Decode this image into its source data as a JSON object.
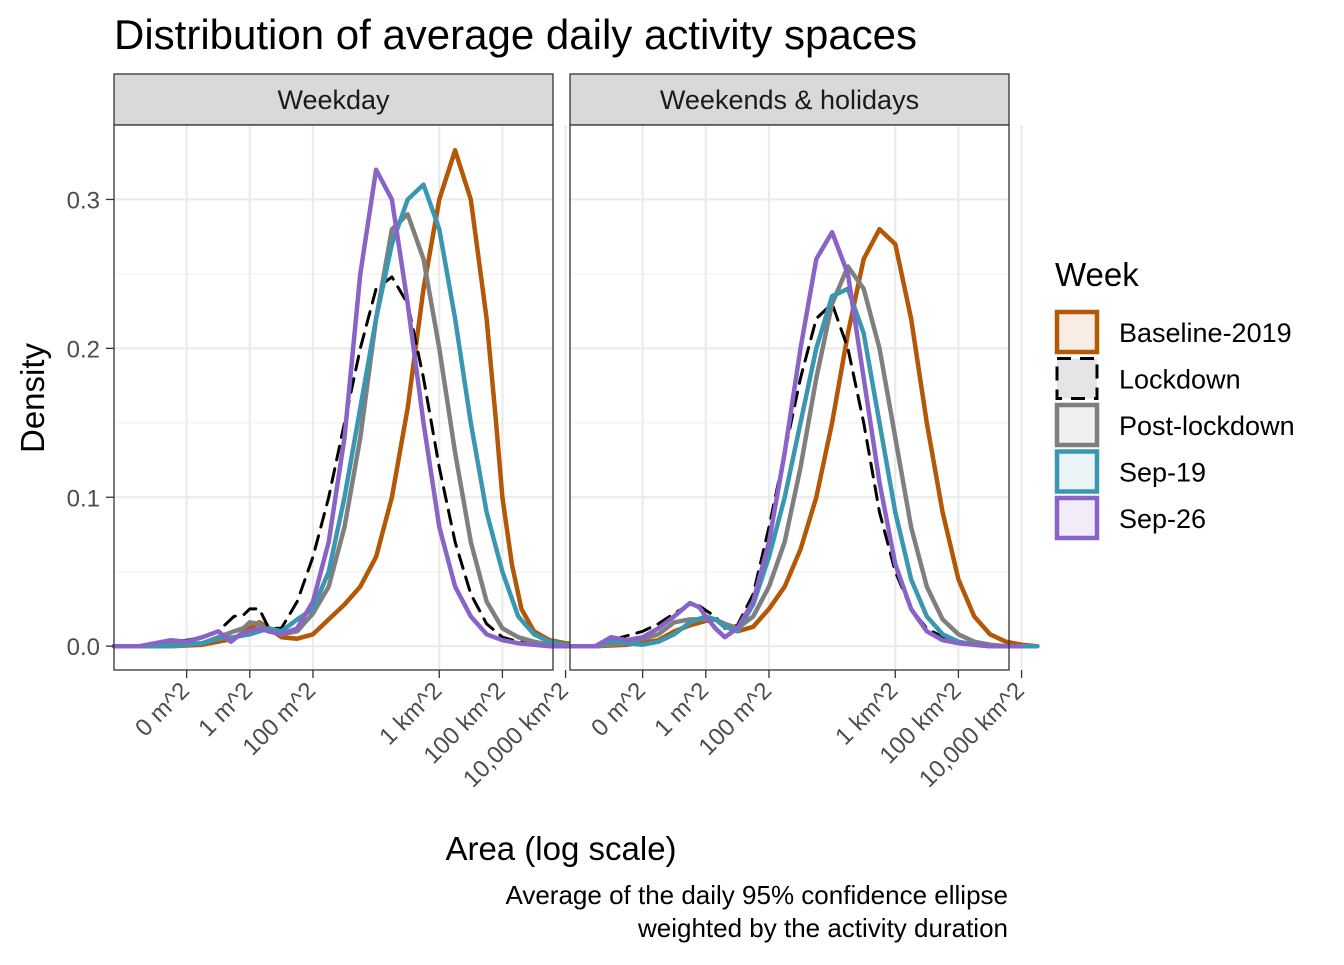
{
  "chart_data": {
    "type": "area",
    "title": "Distribution of average daily activity spaces",
    "xlabel": "Area (log scale)",
    "ylabel": "Density",
    "caption_lines": [
      "Average of the daily 95% confidence ellipse",
      "weighted by the activity duration"
    ],
    "x_scale": "log10",
    "xlim_m2": [
      5e-05,
      4000000000
    ],
    "ylim": [
      -0.016,
      0.35
    ],
    "grid": true,
    "x_ticks": [
      {
        "value_m2": 0.01,
        "label": "0 m^2"
      },
      {
        "value_m2": 1,
        "label": "1 m^2"
      },
      {
        "value_m2": 100,
        "label": "100 m^2"
      },
      {
        "value_m2": 1000000,
        "label": "1 km^2"
      },
      {
        "value_m2": 100000000,
        "label": "100 km^2"
      },
      {
        "value_m2": 10000000000,
        "label": "10,000 km^2"
      }
    ],
    "y_ticks": [
      0.0,
      0.1,
      0.2,
      0.3
    ],
    "y_tick_labels": [
      "0.0",
      "0.1",
      "0.2",
      "0.3"
    ],
    "legend": {
      "title": "Week",
      "position": "right"
    },
    "series_styles": [
      {
        "name": "Baseline-2019",
        "color": "#B35806",
        "fill": "#F7EDE4",
        "dash": false
      },
      {
        "name": "Lockdown",
        "color": "#000000",
        "fill": "#E5E5E5",
        "dash": true
      },
      {
        "name": "Post-lockdown",
        "color": "#7F7F7F",
        "fill": "#F0F0F0",
        "dash": false
      },
      {
        "name": "Sep-19",
        "color": "#3A97B2",
        "fill": "#EAF4F7",
        "dash": false
      },
      {
        "name": "Sep-26",
        "color": "#8A63C6",
        "fill": "#F1EDF8",
        "dash": false
      }
    ],
    "panels": [
      {
        "name": "Weekday",
        "series": [
          {
            "name": "Baseline-2019",
            "x_log10": [
              -4.3,
              -3.5,
              -2.5,
              -1.5,
              -1,
              -0.5,
              0,
              0.3,
              0.6,
              1,
              1.5,
              2,
              2.5,
              3,
              3.5,
              4,
              4.5,
              5,
              5.5,
              6,
              6.5,
              7,
              7.5,
              7.8,
              8,
              8.3,
              8.6,
              9,
              9.5,
              10,
              10.5
            ],
            "density": [
              0,
              0,
              0,
              0.001,
              0.003,
              0.005,
              0.012,
              0.016,
              0.012,
              0.006,
              0.005,
              0.008,
              0.018,
              0.028,
              0.04,
              0.06,
              0.1,
              0.16,
              0.24,
              0.3,
              0.333,
              0.3,
              0.22,
              0.15,
              0.1,
              0.055,
              0.025,
              0.01,
              0.004,
              0.002,
              0.001
            ]
          },
          {
            "name": "Lockdown",
            "x_log10": [
              -4.3,
              -3.5,
              -2.5,
              -2,
              -1.5,
              -1,
              -0.5,
              -0.2,
              0,
              0.3,
              0.6,
              1,
              1.5,
              2,
              2.5,
              3,
              3.5,
              4,
              4.5,
              5,
              5.5,
              6,
              6.5,
              7,
              7.5,
              8,
              8.5,
              9,
              9.5,
              10
            ],
            "density": [
              0,
              0,
              0.003,
              0.004,
              0.006,
              0.01,
              0.02,
              0.021,
              0.025,
              0.025,
              0.012,
              0.012,
              0.03,
              0.06,
              0.1,
              0.15,
              0.2,
              0.24,
              0.248,
              0.23,
              0.18,
              0.12,
              0.07,
              0.035,
              0.015,
              0.006,
              0.003,
              0.002,
              0.001,
              0.0
            ]
          },
          {
            "name": "Post-lockdown",
            "x_log10": [
              -4.3,
              -3.5,
              -2.5,
              -1.5,
              -1,
              -0.5,
              -0.2,
              0,
              0.3,
              0.6,
              1,
              1.5,
              2,
              2.5,
              3,
              3.5,
              4,
              4.5,
              5,
              5.5,
              6,
              6.5,
              7,
              7.5,
              8,
              8.5,
              9,
              9.5,
              10,
              10.5
            ],
            "density": [
              0,
              0,
              0.001,
              0.002,
              0.006,
              0.01,
              0.012,
              0.016,
              0.015,
              0.01,
              0.008,
              0.01,
              0.022,
              0.04,
              0.08,
              0.14,
              0.22,
              0.28,
              0.29,
              0.26,
              0.2,
              0.13,
              0.07,
              0.03,
              0.012,
              0.006,
              0.003,
              0.001,
              0,
              0
            ]
          },
          {
            "name": "Sep-19",
            "x_log10": [
              -4.3,
              -3.5,
              -2.5,
              -1.5,
              -1,
              -0.5,
              0,
              0.3,
              0.6,
              1,
              1.5,
              2,
              2.5,
              3,
              3.5,
              4,
              4.5,
              5,
              5.5,
              6,
              6.5,
              7,
              7.5,
              8,
              8.5,
              9,
              9.5,
              10,
              10.5
            ],
            "density": [
              0,
              0,
              0,
              0.002,
              0.005,
              0.006,
              0.008,
              0.01,
              0.012,
              0.01,
              0.018,
              0.025,
              0.05,
              0.1,
              0.16,
              0.22,
              0.27,
              0.3,
              0.31,
              0.28,
              0.22,
              0.15,
              0.09,
              0.05,
              0.02,
              0.008,
              0.003,
              0.001,
              0
            ]
          },
          {
            "name": "Sep-26",
            "x_log10": [
              -4.3,
              -3.5,
              -2.5,
              -2,
              -1.5,
              -1,
              -0.6,
              -0.3,
              0,
              0.3,
              0.6,
              1,
              1.5,
              2,
              2.5,
              3,
              3.5,
              4,
              4.5,
              5,
              5.5,
              6,
              6.5,
              7,
              7.5,
              8,
              8.5,
              9,
              9.5,
              10
            ],
            "density": [
              0,
              0,
              0.004,
              0.003,
              0.006,
              0.01,
              0.003,
              0.008,
              0.01,
              0.012,
              0.01,
              0.008,
              0.012,
              0.03,
              0.07,
              0.14,
              0.25,
              0.32,
              0.3,
              0.23,
              0.15,
              0.08,
              0.04,
              0.02,
              0.008,
              0.004,
              0.002,
              0.001,
              0,
              0
            ]
          }
        ]
      },
      {
        "name": "Weekends & holidays",
        "series": [
          {
            "name": "Baseline-2019",
            "x_log10": [
              -4.3,
              -3.5,
              -2.5,
              -1.5,
              -1,
              -0.5,
              0,
              0.3,
              0.6,
              1,
              1.5,
              2,
              2.5,
              3,
              3.5,
              4,
              4.5,
              5,
              5.5,
              6,
              6.5,
              7,
              7.5,
              8,
              8.5,
              9,
              9.5,
              10,
              10.5
            ],
            "density": [
              0,
              0,
              0.001,
              0.004,
              0.01,
              0.014,
              0.017,
              0.018,
              0.014,
              0.01,
              0.013,
              0.025,
              0.04,
              0.065,
              0.1,
              0.15,
              0.21,
              0.26,
              0.28,
              0.27,
              0.22,
              0.15,
              0.09,
              0.045,
              0.02,
              0.008,
              0.003,
              0.001,
              0
            ]
          },
          {
            "name": "Lockdown",
            "x_log10": [
              -4.3,
              -3.5,
              -3,
              -2.5,
              -2,
              -1.5,
              -1,
              -0.5,
              -0.2,
              0,
              0.3,
              0.6,
              1,
              1.5,
              2,
              2.5,
              3,
              3.5,
              4,
              4.5,
              5,
              5.5,
              6,
              6.5,
              7,
              7.5,
              8,
              8.5,
              9,
              9.5,
              10
            ],
            "density": [
              0,
              0,
              0.004,
              0.007,
              0.01,
              0.015,
              0.022,
              0.028,
              0.027,
              0.024,
              0.02,
              0.012,
              0.014,
              0.035,
              0.08,
              0.13,
              0.18,
              0.22,
              0.23,
              0.2,
              0.15,
              0.09,
              0.05,
              0.025,
              0.012,
              0.006,
              0.003,
              0.001,
              0,
              0,
              0
            ]
          },
          {
            "name": "Post-lockdown",
            "x_log10": [
              -4.3,
              -3.5,
              -2.5,
              -1.5,
              -1,
              -0.5,
              0,
              0.3,
              0.6,
              1,
              1.5,
              2,
              2.5,
              3,
              3.5,
              4,
              4.5,
              5,
              5.5,
              6,
              6.5,
              7,
              7.5,
              8,
              8.5,
              9,
              9.5,
              10,
              10.5
            ],
            "density": [
              0,
              0,
              0.002,
              0.008,
              0.016,
              0.018,
              0.018,
              0.018,
              0.015,
              0.012,
              0.02,
              0.04,
              0.07,
              0.12,
              0.18,
              0.23,
              0.255,
              0.24,
              0.2,
              0.14,
              0.08,
              0.04,
              0.018,
              0.008,
              0.003,
              0.001,
              0,
              0,
              0
            ]
          },
          {
            "name": "Sep-19",
            "x_log10": [
              -4.3,
              -3.5,
              -3,
              -2.5,
              -2,
              -1.5,
              -1,
              -0.5,
              0,
              0.3,
              0.6,
              1,
              1.5,
              2,
              2.5,
              3,
              3.5,
              4,
              4.5,
              5,
              5.5,
              6,
              6.5,
              7,
              7.5,
              8,
              8.5,
              9,
              9.5,
              10,
              10.5
            ],
            "density": [
              0,
              0,
              0.004,
              0.002,
              0.001,
              0.003,
              0.008,
              0.016,
              0.02,
              0.018,
              0.013,
              0.01,
              0.028,
              0.06,
              0.1,
              0.15,
              0.2,
              0.235,
              0.24,
              0.21,
              0.15,
              0.09,
              0.045,
              0.02,
              0.008,
              0.003,
              0.001,
              0,
              0,
              0,
              0
            ]
          },
          {
            "name": "Sep-26",
            "x_log10": [
              -4.3,
              -3.5,
              -3,
              -2.5,
              -2,
              -1.5,
              -1,
              -0.5,
              -0.2,
              0,
              0.3,
              0.6,
              1,
              1.5,
              2,
              2.5,
              3,
              3.5,
              4,
              4.5,
              5,
              5.5,
              6,
              6.5,
              7,
              7.5,
              8,
              8.5,
              9,
              9.5,
              10
            ],
            "density": [
              0,
              0,
              0.006,
              0.004,
              0.006,
              0.012,
              0.02,
              0.029,
              0.026,
              0.02,
              0.012,
              0.006,
              0.012,
              0.03,
              0.07,
              0.13,
              0.2,
              0.26,
              0.278,
              0.25,
              0.18,
              0.11,
              0.055,
              0.025,
              0.01,
              0.004,
              0.002,
              0.001,
              0,
              0,
              0
            ]
          }
        ]
      }
    ]
  }
}
